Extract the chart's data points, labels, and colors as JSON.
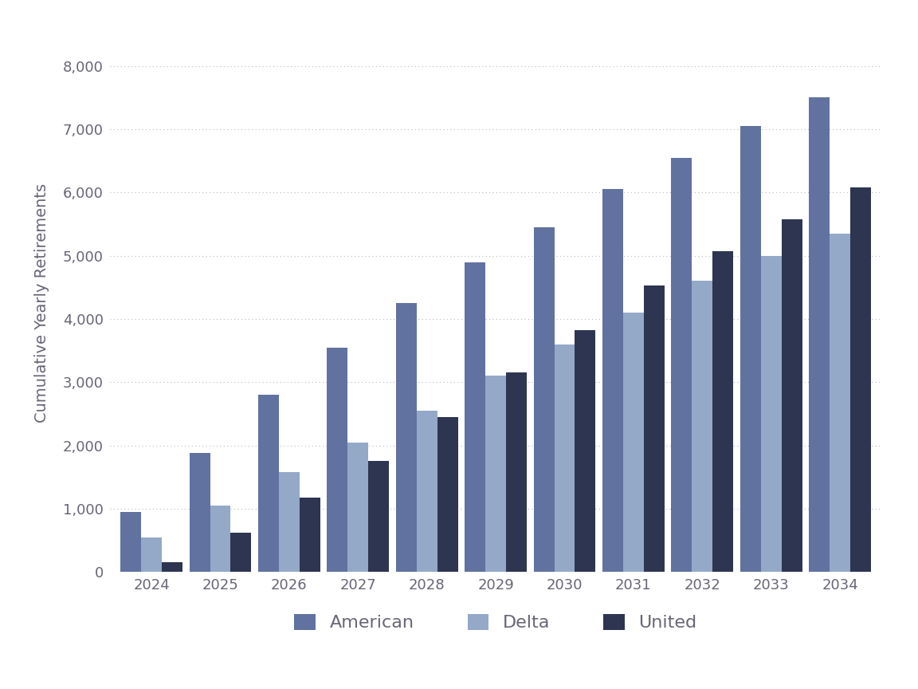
{
  "years": [
    2024,
    2025,
    2026,
    2027,
    2028,
    2029,
    2030,
    2031,
    2032,
    2033,
    2034
  ],
  "american": [
    950,
    1875,
    2800,
    3550,
    4250,
    4900,
    5450,
    6050,
    6550,
    7050,
    7500
  ],
  "delta": [
    550,
    1050,
    1575,
    2050,
    2550,
    3100,
    3600,
    4100,
    4600,
    5000,
    5350
  ],
  "united": [
    150,
    625,
    1175,
    1750,
    2450,
    3150,
    3825,
    4525,
    5075,
    5575,
    6075
  ],
  "color_american": "#6172a0",
  "color_delta": "#94a8c8",
  "color_united": "#2d3550",
  "ylabel": "Cumulative Yearly Retirements",
  "ylim": [
    0,
    8500
  ],
  "yticks": [
    0,
    1000,
    2000,
    3000,
    4000,
    5000,
    6000,
    7000,
    8000
  ],
  "ytick_labels": [
    "0",
    "1,000",
    "2,000",
    "3,000",
    "4,000",
    "5,000",
    "6,000",
    "7,000",
    "8,000"
  ],
  "legend_labels": [
    "American",
    "Delta",
    "United"
  ],
  "background_color": "#ffffff",
  "bar_width": 0.3,
  "grid_color": "#bbbbbb",
  "font_color": "#666677",
  "tick_fontsize": 13,
  "ylabel_fontsize": 14,
  "legend_fontsize": 16
}
